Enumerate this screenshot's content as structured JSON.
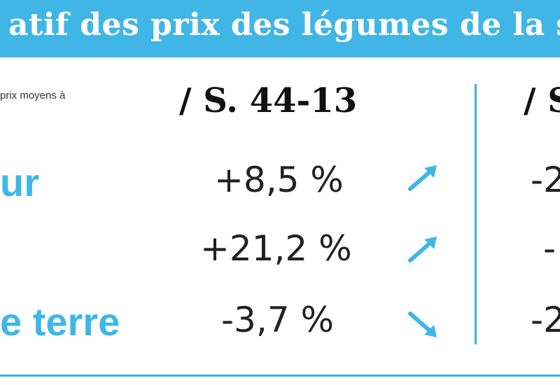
{
  "header": {
    "title": "atif des prix des légumes de la se"
  },
  "note": "prix moyens à",
  "columns": [
    "/ S. 44-13",
    "/ S"
  ],
  "chart_data": {
    "type": "table",
    "columns": [
      "/ S. 44-13",
      "/ S"
    ],
    "rows": [
      {
        "label": "ur",
        "values": [
          "+8,5 %",
          "-2"
        ],
        "trend": "up"
      },
      {
        "label": "",
        "values": [
          "+21,2 %",
          "-"
        ],
        "trend": "up"
      },
      {
        "label": "e terre",
        "values": [
          "-3,7 %",
          "-2"
        ],
        "trend": "down"
      }
    ]
  },
  "colors": {
    "accent": "#40b6e6",
    "label_blue": "#3db7e8",
    "text_dark": "#222222"
  },
  "icons": [
    "arrow-up-right-icon",
    "arrow-up-right-icon",
    "arrow-down-right-icon"
  ]
}
